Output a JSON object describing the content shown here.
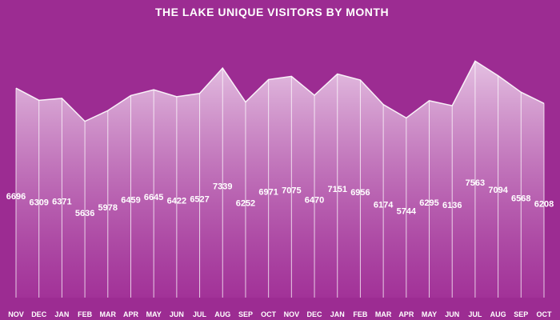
{
  "chart_data": {
    "type": "area",
    "title": "THE LAKE UNIQUE VISITORS BY MONTH",
    "categories": [
      "NOV",
      "DEC",
      "JAN",
      "FEB",
      "MAR",
      "APR",
      "MAY",
      "JUN",
      "JUL",
      "AUG",
      "SEP",
      "OCT",
      "NOV",
      "DEC",
      "JAN",
      "FEB",
      "MAR",
      "APR",
      "MAY",
      "JUN",
      "JUL",
      "AUG",
      "SEP",
      "OCT"
    ],
    "values": [
      6696,
      6309,
      6371,
      5636,
      5978,
      6459,
      6645,
      6422,
      6527,
      7339,
      6252,
      6971,
      7075,
      6470,
      7151,
      6956,
      6174,
      5744,
      6295,
      6136,
      7563,
      7094,
      6568,
      6208
    ],
    "ylim": [
      0,
      7800
    ],
    "grid": false,
    "xlabel": "",
    "ylabel": ""
  },
  "colors": {
    "background": "#9c2c92",
    "fill_top": "#e8c8e6",
    "fill_bottom": "#a6369c",
    "line": "#ffffff"
  }
}
